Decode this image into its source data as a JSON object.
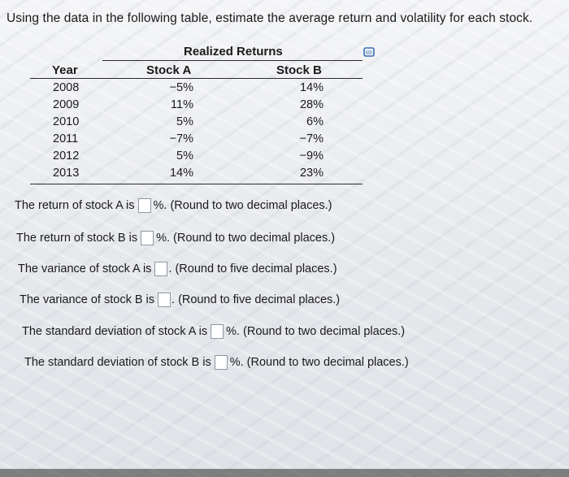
{
  "question": "Using the data in the following table, estimate the average return and volatility for each stock.",
  "table": {
    "caption": "Realized Returns",
    "headers": {
      "year": "Year",
      "stock_a": "Stock A",
      "stock_b": "Stock B"
    },
    "rows": [
      {
        "year": "2008",
        "stock_a": "−5%",
        "stock_b": "14%"
      },
      {
        "year": "2009",
        "stock_a": "11%",
        "stock_b": "28%"
      },
      {
        "year": "2010",
        "stock_a": "5%",
        "stock_b": "6%"
      },
      {
        "year": "2011",
        "stock_a": "−7%",
        "stock_b": "−7%"
      },
      {
        "year": "2012",
        "stock_a": "5%",
        "stock_b": "−9%"
      },
      {
        "year": "2013",
        "stock_a": "14%",
        "stock_b": "23%"
      }
    ]
  },
  "answers": [
    {
      "prefix": "The return of stock A is",
      "suffix": "%. (Round to two decimal places.)",
      "value": ""
    },
    {
      "prefix": "The return of stock B is",
      "suffix": "%. (Round to two decimal places.)",
      "value": ""
    },
    {
      "prefix": "The variance of stock A is",
      "suffix": ". (Round to five decimal places.)",
      "value": ""
    },
    {
      "prefix": "The variance of stock B is",
      "suffix": ". (Round to five decimal places.)",
      "value": ""
    },
    {
      "prefix": "The standard deviation of stock A is",
      "suffix": "%. (Round to two decimal places.)",
      "value": ""
    },
    {
      "prefix": "The standard deviation of stock B is",
      "suffix": "%. (Round to two decimal places.)",
      "value": ""
    }
  ],
  "icons": {
    "table_action": "expand-table-icon"
  },
  "colors": {
    "input_border": "#8e97a3",
    "rule": "#2a2a2a"
  }
}
